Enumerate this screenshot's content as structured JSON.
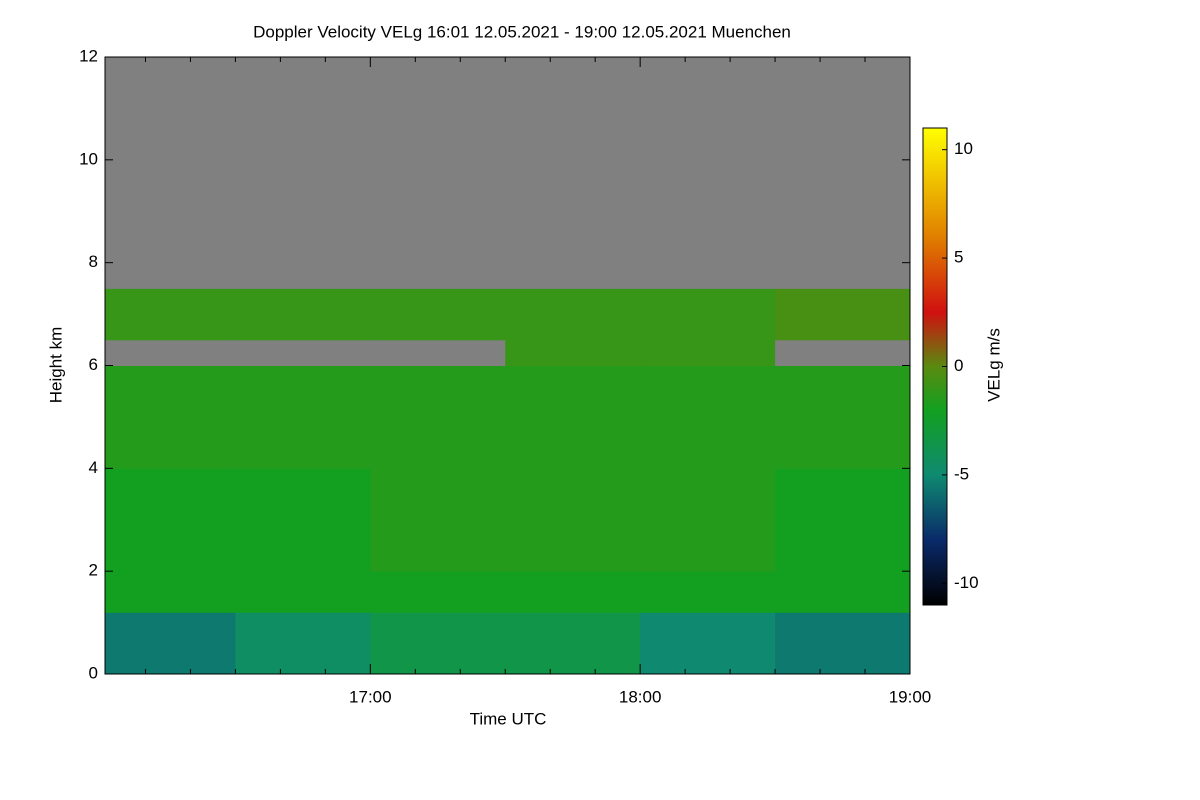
{
  "chart_data": {
    "type": "heatmap",
    "title": "Doppler Velocity VELg   16:01 12.05.2021 - 19:00 12.05.2021 Muenchen",
    "x_label": "Time UTC",
    "y_label": "Height km",
    "colorbar_label": "VELg m/s",
    "xlim": [
      16.0167,
      19.0
    ],
    "xticks": [
      {
        "value": 17,
        "label": "17:00"
      },
      {
        "value": 18,
        "label": "18:00"
      },
      {
        "value": 19,
        "label": "19:00"
      }
    ],
    "xminorticks": [
      16.1667,
      16.3333,
      16.5,
      16.6667,
      16.8333,
      17.1667,
      17.3333,
      17.5,
      17.6667,
      17.8333,
      18.1667,
      18.3333,
      18.5,
      18.6667,
      18.8333
    ],
    "ylim": [
      0,
      12
    ],
    "yticks": [
      0,
      2,
      4,
      6,
      8,
      10,
      12
    ],
    "x_edges": [
      16.0167,
      16.5,
      17.0,
      17.5,
      18.0,
      18.5,
      19.0
    ],
    "y_edges": [
      0,
      1.2,
      2,
      4,
      6,
      6.5,
      7.5,
      12
    ],
    "z": [
      [
        -5.5,
        -4.5,
        -3.5,
        -3.5,
        -5,
        -5.5
      ],
      [
        -2,
        -2,
        -2,
        -2,
        -2,
        -2
      ],
      [
        -2,
        -2,
        -1.5,
        -1.5,
        -1.5,
        -2
      ],
      [
        -1.5,
        -1.5,
        -1.5,
        -1.5,
        -1.5,
        -1.5
      ],
      [
        null,
        null,
        null,
        -1,
        -1,
        null
      ],
      [
        -1,
        -1,
        -1,
        -1,
        -1,
        -0.5
      ],
      [
        null,
        null,
        null,
        null,
        null,
        null
      ]
    ],
    "zlim": [
      -11,
      11
    ],
    "zticks": [
      -10,
      -5,
      0,
      5,
      10
    ],
    "null_color": "#808080",
    "colorscale": [
      [
        -11,
        "#000000"
      ],
      [
        -8,
        "#0a2a6a"
      ],
      [
        -5,
        "#0f8a70"
      ],
      [
        -2,
        "#13a020"
      ],
      [
        0,
        "#5a8a10"
      ],
      [
        2.5,
        "#d01010"
      ],
      [
        6,
        "#e08000"
      ],
      [
        11,
        "#ffff00"
      ]
    ]
  }
}
